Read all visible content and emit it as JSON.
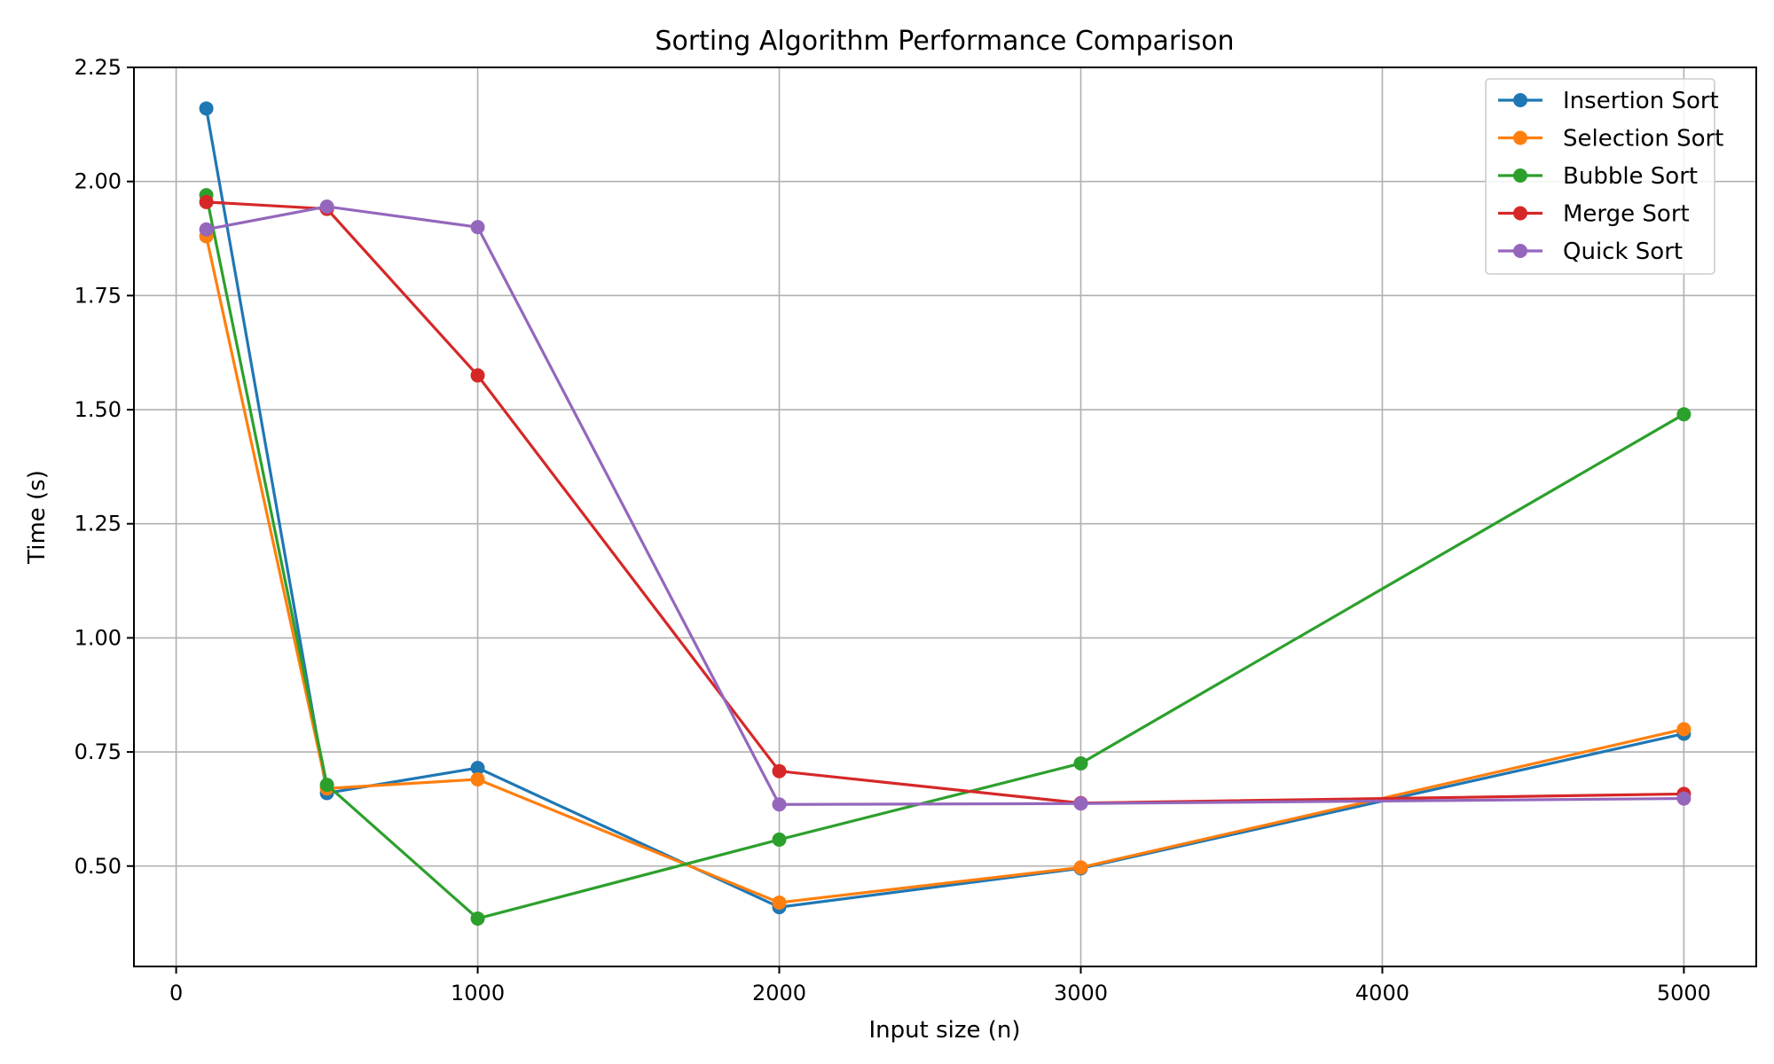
{
  "chart_data": {
    "type": "line",
    "title": "Sorting Algorithm Performance Comparison",
    "xlabel": "Input size (n)",
    "ylabel": "Time (s)",
    "x": [
      100,
      500,
      1000,
      2000,
      3000,
      5000
    ],
    "xlim": [
      -140,
      5240
    ],
    "ylim": [
      0.28,
      2.25
    ],
    "xticks": [
      0,
      1000,
      2000,
      3000,
      4000,
      5000
    ],
    "yticks": [
      0.5,
      0.75,
      1.0,
      1.25,
      1.5,
      1.75,
      2.0,
      2.25
    ],
    "grid": true,
    "legend_position": "top-right",
    "series": [
      {
        "name": "Insertion Sort",
        "color": "#1f77b4",
        "values": [
          2.16,
          0.66,
          0.715,
          0.41,
          0.495,
          0.79
        ]
      },
      {
        "name": "Selection Sort",
        "color": "#ff7f0e",
        "values": [
          1.88,
          0.67,
          0.69,
          0.42,
          0.497,
          0.8
        ]
      },
      {
        "name": "Bubble Sort",
        "color": "#2ca02c",
        "values": [
          1.97,
          0.678,
          0.385,
          0.558,
          0.725,
          1.49
        ]
      },
      {
        "name": "Merge Sort",
        "color": "#d62728",
        "values": [
          1.955,
          1.94,
          1.575,
          0.708,
          0.638,
          0.658
        ]
      },
      {
        "name": "Quick Sort",
        "color": "#9467bd",
        "values": [
          1.895,
          1.945,
          1.9,
          0.635,
          0.637,
          0.648
        ]
      }
    ]
  }
}
